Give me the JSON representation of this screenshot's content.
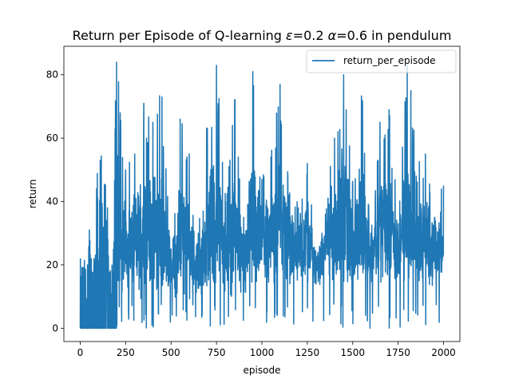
{
  "chart_data": {
    "type": "line",
    "title_parts": {
      "prefix": "Return per Episode of Q-learning ",
      "epsilon_symbol": "ε",
      "epsilon_value": "=0.2 ",
      "alpha_symbol": "α",
      "alpha_value": "=0.6 in pendulum"
    },
    "xlabel": "episode",
    "ylabel": "return",
    "xlim": [
      -90,
      2090
    ],
    "ylim": [
      -4.2,
      89
    ],
    "x_ticks": [
      0,
      250,
      500,
      750,
      1000,
      1250,
      1500,
      1750,
      2000
    ],
    "y_ticks": [
      0,
      20,
      40,
      60,
      80
    ],
    "legend_position": "top-right",
    "series": [
      {
        "name": "return_per_episode",
        "color": "#1f77b4",
        "sample_points": [
          [
            0,
            0
          ],
          [
            20,
            12
          ],
          [
            40,
            20
          ],
          [
            50,
            31
          ],
          [
            70,
            0
          ],
          [
            90,
            44
          ],
          [
            110,
            53
          ],
          [
            150,
            38
          ],
          [
            170,
            0
          ],
          [
            200,
            84
          ],
          [
            220,
            68
          ],
          [
            250,
            50
          ],
          [
            300,
            55
          ],
          [
            350,
            71
          ],
          [
            400,
            65
          ],
          [
            450,
            73
          ],
          [
            500,
            25
          ],
          [
            550,
            66
          ],
          [
            600,
            55
          ],
          [
            650,
            30
          ],
          [
            700,
            63
          ],
          [
            750,
            83
          ],
          [
            800,
            40
          ],
          [
            850,
            72
          ],
          [
            900,
            35
          ],
          [
            950,
            81
          ],
          [
            1000,
            47
          ],
          [
            1050,
            54
          ],
          [
            1100,
            77
          ],
          [
            1150,
            42
          ],
          [
            1200,
            38
          ],
          [
            1250,
            52
          ],
          [
            1300,
            20
          ],
          [
            1350,
            36
          ],
          [
            1400,
            60
          ],
          [
            1450,
            80
          ],
          [
            1500,
            45
          ],
          [
            1550,
            72
          ],
          [
            1600,
            30
          ],
          [
            1650,
            65
          ],
          [
            1700,
            69
          ],
          [
            1750,
            33
          ],
          [
            1800,
            83
          ],
          [
            1820,
            75
          ],
          [
            1850,
            48
          ],
          [
            1900,
            55
          ],
          [
            1950,
            35
          ],
          [
            2000,
            45
          ]
        ]
      }
    ]
  }
}
